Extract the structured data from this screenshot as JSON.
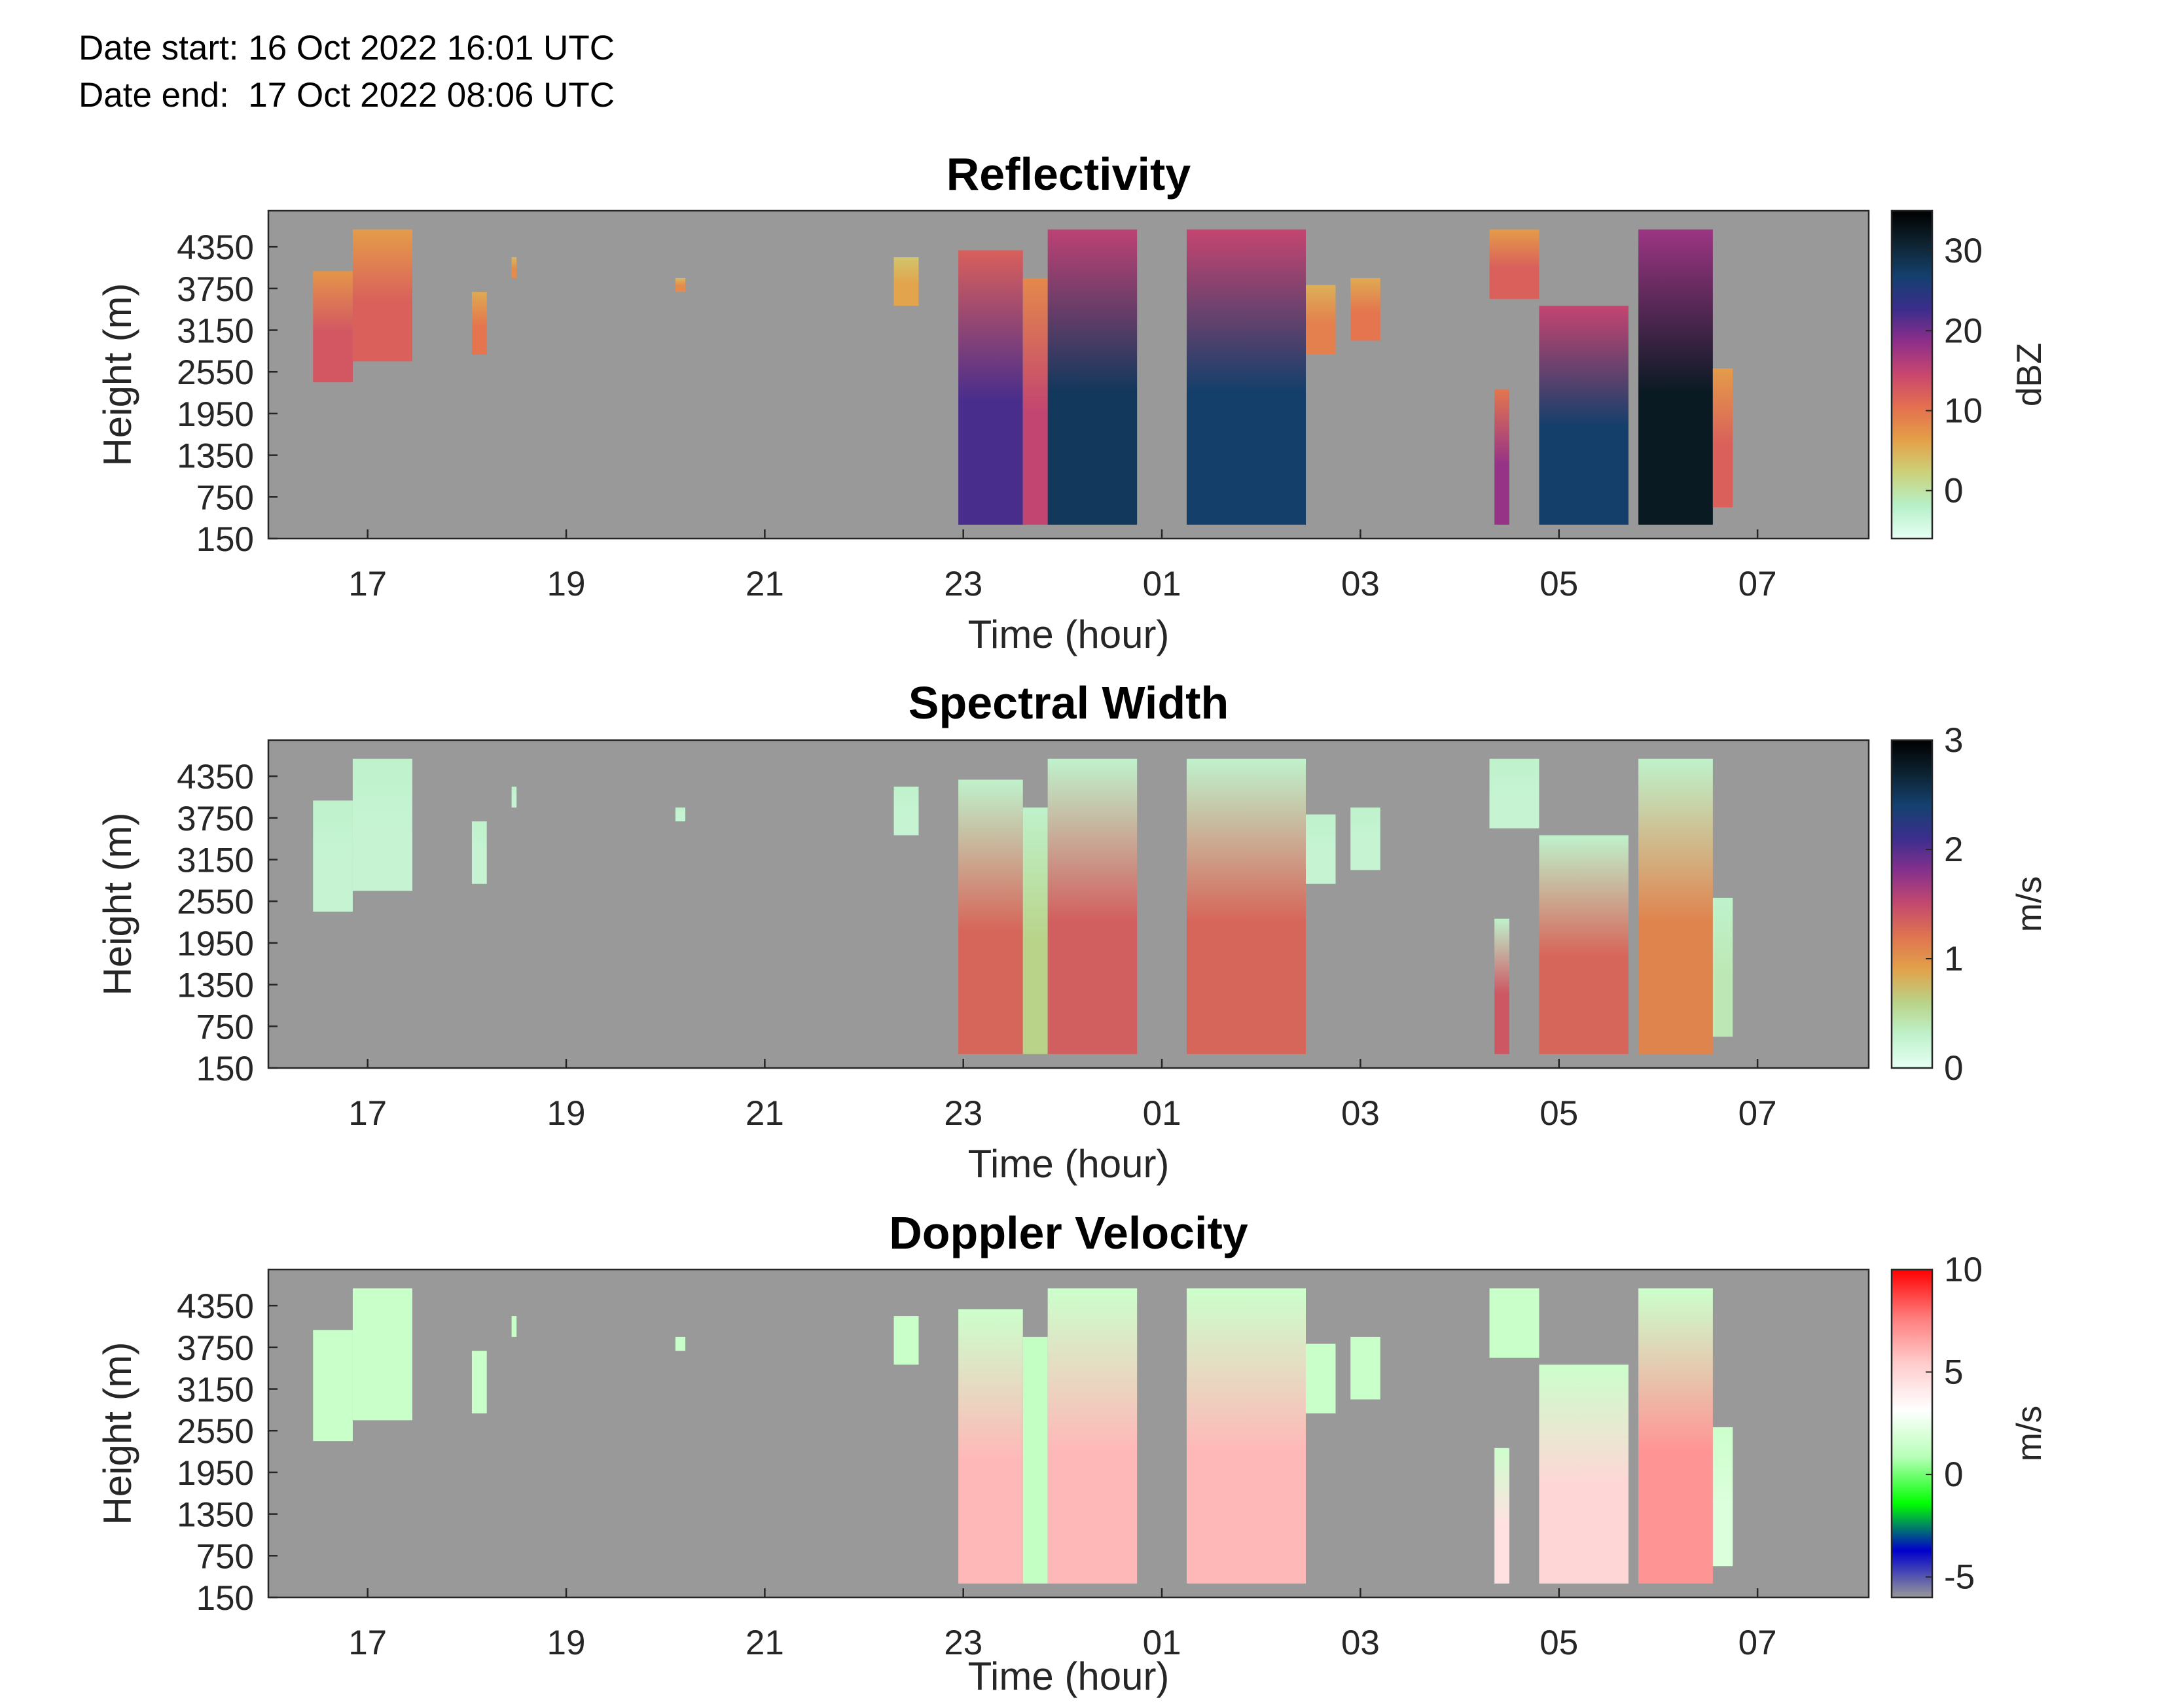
{
  "header": {
    "start_label": "Date start:",
    "start_value": "16 Oct 2022 16:01 UTC",
    "end_label": "Date end:",
    "end_value": "17 Oct 2022 08:06 UTC"
  },
  "chart_data": [
    {
      "type": "heatmap",
      "title": "Reflectivity",
      "xlabel": "Time (hour)",
      "ylabel": "Height (m)",
      "x_ticks": [
        "17",
        "19",
        "21",
        "23",
        "01",
        "03",
        "05",
        "07"
      ],
      "y_ticks": [
        "150",
        "750",
        "1350",
        "1950",
        "2550",
        "3150",
        "3750",
        "4350"
      ],
      "colorbar": {
        "label": "dBZ",
        "ticks": [
          "30",
          "20",
          "10",
          "0"
        ],
        "range": [
          -6,
          35
        ],
        "colors": [
          "#e6fff4",
          "#b7f0c9",
          "#cbd27a",
          "#e4a048",
          "#e4704f",
          "#c9476e",
          "#8e2f8a",
          "#3a2d8c",
          "#14406e",
          "#0e2330",
          "#000000"
        ]
      },
      "no_data_color": "#999999",
      "echoes": [
        {
          "t0": 16.45,
          "t1": 16.85,
          "h0": 2400,
          "h1": 4000,
          "v": 13
        },
        {
          "t0": 16.85,
          "t1": 17.45,
          "h0": 2700,
          "h1": 4600,
          "v": 12
        },
        {
          "t0": 18.05,
          "t1": 18.2,
          "h0": 2800,
          "h1": 3700,
          "v": 10
        },
        {
          "t0": 18.45,
          "t1": 18.5,
          "h0": 3900,
          "h1": 4200,
          "v": 8
        },
        {
          "t0": 20.1,
          "t1": 20.2,
          "h0": 3700,
          "h1": 3900,
          "v": 8
        },
        {
          "t0": 22.3,
          "t1": 22.55,
          "h0": 3500,
          "h1": 4200,
          "v": 6
        },
        {
          "t0": 22.95,
          "t1": 23.6,
          "h0": 350,
          "h1": 4300,
          "v": 22
        },
        {
          "t0": 23.6,
          "t1": 23.85,
          "h0": 350,
          "h1": 3900,
          "v": 15
        },
        {
          "t0": 23.85,
          "t1": 24.75,
          "h0": 350,
          "h1": 4600,
          "v": 28
        },
        {
          "t0": 25.25,
          "t1": 26.45,
          "h0": 350,
          "h1": 4600,
          "v": 27
        },
        {
          "t0": 26.45,
          "t1": 26.75,
          "h0": 2800,
          "h1": 3800,
          "v": 9
        },
        {
          "t0": 26.9,
          "t1": 27.2,
          "h0": 3000,
          "h1": 3900,
          "v": 10
        },
        {
          "t0": 28.35,
          "t1": 28.5,
          "h0": 350,
          "h1": 2300,
          "v": 18
        },
        {
          "t0": 28.3,
          "t1": 28.8,
          "h0": 3600,
          "h1": 4600,
          "v": 12
        },
        {
          "t0": 28.8,
          "t1": 29.7,
          "h0": 350,
          "h1": 3500,
          "v": 27
        },
        {
          "t0": 29.8,
          "t1": 30.55,
          "h0": 350,
          "h1": 4600,
          "v": 32
        },
        {
          "t0": 30.55,
          "t1": 30.75,
          "h0": 600,
          "h1": 2600,
          "v": 12
        }
      ]
    },
    {
      "type": "heatmap",
      "title": "Spectral Width",
      "xlabel": "Time (hour)",
      "ylabel": "Height (m)",
      "x_ticks": [
        "17",
        "19",
        "21",
        "23",
        "01",
        "03",
        "05",
        "07"
      ],
      "y_ticks": [
        "150",
        "750",
        "1350",
        "1950",
        "2550",
        "3150",
        "3750",
        "4350"
      ],
      "colorbar": {
        "label": "m/s",
        "ticks": [
          "3",
          "2",
          "1",
          "0"
        ],
        "range": [
          0,
          3
        ],
        "colors": [
          "#e6fff4",
          "#bff2cc",
          "#b9d388",
          "#e2a24a",
          "#df7550",
          "#c4496e",
          "#86318c",
          "#3b2e8e",
          "#15416f",
          "#0c2230",
          "#000000"
        ]
      },
      "no_data_color": "#999999",
      "echoes": [
        {
          "t0": 16.45,
          "t1": 16.85,
          "h0": 2400,
          "h1": 4000,
          "v": 0.25
        },
        {
          "t0": 16.85,
          "t1": 17.45,
          "h0": 2700,
          "h1": 4600,
          "v": 0.25
        },
        {
          "t0": 18.05,
          "t1": 18.2,
          "h0": 2800,
          "h1": 3700,
          "v": 0.25
        },
        {
          "t0": 18.45,
          "t1": 18.5,
          "h0": 3900,
          "h1": 4200,
          "v": 0.25
        },
        {
          "t0": 20.1,
          "t1": 20.2,
          "h0": 3700,
          "h1": 3900,
          "v": 0.25
        },
        {
          "t0": 22.3,
          "t1": 22.55,
          "h0": 3500,
          "h1": 4200,
          "v": 0.25
        },
        {
          "t0": 22.95,
          "t1": 23.6,
          "h0": 350,
          "h1": 4300,
          "v": 1.3
        },
        {
          "t0": 23.6,
          "t1": 23.85,
          "h0": 350,
          "h1": 3900,
          "v": 0.6
        },
        {
          "t0": 23.85,
          "t1": 24.75,
          "h0": 350,
          "h1": 4600,
          "v": 1.35
        },
        {
          "t0": 25.25,
          "t1": 26.45,
          "h0": 350,
          "h1": 4600,
          "v": 1.3
        },
        {
          "t0": 26.45,
          "t1": 26.75,
          "h0": 2800,
          "h1": 3800,
          "v": 0.25
        },
        {
          "t0": 26.9,
          "t1": 27.2,
          "h0": 3000,
          "h1": 3900,
          "v": 0.25
        },
        {
          "t0": 28.35,
          "t1": 28.5,
          "h0": 350,
          "h1": 2300,
          "v": 1.4
        },
        {
          "t0": 28.3,
          "t1": 28.8,
          "h0": 3600,
          "h1": 4600,
          "v": 0.25
        },
        {
          "t0": 28.8,
          "t1": 29.7,
          "h0": 350,
          "h1": 3500,
          "v": 1.3
        },
        {
          "t0": 29.8,
          "t1": 30.55,
          "h0": 350,
          "h1": 4600,
          "v": 1.1
        },
        {
          "t0": 30.55,
          "t1": 30.75,
          "h0": 600,
          "h1": 2600,
          "v": 0.4
        }
      ]
    },
    {
      "type": "heatmap",
      "title": "Doppler Velocity",
      "xlabel": "Time (hour)",
      "ylabel": "Height (m)",
      "x_ticks": [
        "17",
        "19",
        "21",
        "23",
        "01",
        "03",
        "05",
        "07"
      ],
      "y_ticks": [
        "150",
        "750",
        "1350",
        "1950",
        "2550",
        "3150",
        "3750",
        "4350"
      ],
      "colorbar": {
        "label": "m/s",
        "ticks": [
          "10",
          "5",
          "0",
          "-5"
        ],
        "range": [
          -6,
          10
        ],
        "colors": [
          "#999999",
          "#0000cc",
          "#00ff00",
          "#b8ffb8",
          "#ffffff",
          "#ffcccc",
          "#ff7a7a",
          "#ff0000"
        ]
      },
      "no_data_color": "#999999",
      "echoes": [
        {
          "t0": 16.45,
          "t1": 16.85,
          "h0": 2400,
          "h1": 4000,
          "v": 1.4
        },
        {
          "t0": 16.85,
          "t1": 17.45,
          "h0": 2700,
          "h1": 4600,
          "v": 1.4
        },
        {
          "t0": 18.05,
          "t1": 18.2,
          "h0": 2800,
          "h1": 3700,
          "v": 1.4
        },
        {
          "t0": 18.45,
          "t1": 18.5,
          "h0": 3900,
          "h1": 4200,
          "v": 1.4
        },
        {
          "t0": 20.1,
          "t1": 20.2,
          "h0": 3700,
          "h1": 3900,
          "v": 1.4
        },
        {
          "t0": 22.3,
          "t1": 22.55,
          "h0": 3500,
          "h1": 4200,
          "v": 1.4
        },
        {
          "t0": 22.95,
          "t1": 23.6,
          "h0": 350,
          "h1": 4300,
          "v": 6
        },
        {
          "t0": 23.6,
          "t1": 23.85,
          "h0": 350,
          "h1": 3900,
          "v": 1.2
        },
        {
          "t0": 23.85,
          "t1": 24.75,
          "h0": 350,
          "h1": 4600,
          "v": 6
        },
        {
          "t0": 25.25,
          "t1": 26.45,
          "h0": 350,
          "h1": 4600,
          "v": 6
        },
        {
          "t0": 26.45,
          "t1": 26.75,
          "h0": 2800,
          "h1": 3800,
          "v": 1.4
        },
        {
          "t0": 26.9,
          "t1": 27.2,
          "h0": 3000,
          "h1": 3900,
          "v": 1.4
        },
        {
          "t0": 28.35,
          "t1": 28.5,
          "h0": 350,
          "h1": 2300,
          "v": 4.5
        },
        {
          "t0": 28.3,
          "t1": 28.8,
          "h0": 3600,
          "h1": 4600,
          "v": 1.4
        },
        {
          "t0": 28.8,
          "t1": 29.7,
          "h0": 350,
          "h1": 3500,
          "v": 5
        },
        {
          "t0": 29.8,
          "t1": 30.55,
          "h0": 350,
          "h1": 4600,
          "v": 7
        },
        {
          "t0": 30.55,
          "t1": 30.75,
          "h0": 600,
          "h1": 2600,
          "v": 2
        }
      ]
    }
  ]
}
